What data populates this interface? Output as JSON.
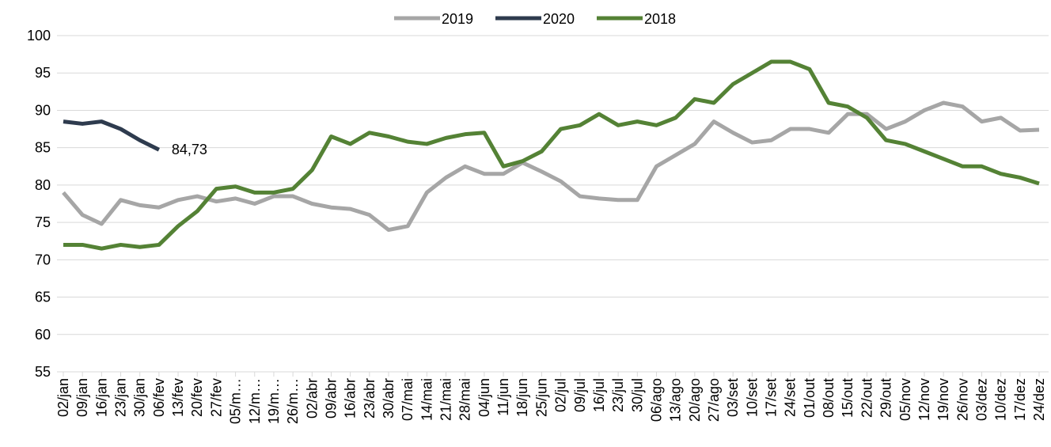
{
  "chart_data": {
    "type": "line",
    "categories": [
      "02/jan",
      "09/jan",
      "16/jan",
      "23/jan",
      "30/jan",
      "06/fev",
      "13/fev",
      "20/fev",
      "27/fev",
      "05/m…",
      "12/m…",
      "19/m…",
      "26/m…",
      "02/abr",
      "09/abr",
      "16/abr",
      "23/abr",
      "30/abr",
      "07/mai",
      "14/mai",
      "21/mai",
      "28/mai",
      "04/jun",
      "11/jun",
      "18/jun",
      "25/jun",
      "02/jul",
      "09/jul",
      "16/jul",
      "23/jul",
      "30/jul",
      "06/ago",
      "13/ago",
      "20/ago",
      "27/ago",
      "03/set",
      "10/set",
      "17/set",
      "24/set",
      "01/out",
      "08/out",
      "15/out",
      "22/out",
      "29/out",
      "05/nov",
      "12/nov",
      "19/nov",
      "26/nov",
      "03/dez",
      "10/dez",
      "17/dez",
      "24/dez"
    ],
    "series": [
      {
        "name": "2019",
        "color": "#a6a6a6",
        "values": [
          79,
          76,
          74.8,
          78,
          77.3,
          77,
          78,
          78.5,
          77.8,
          78.2,
          77.5,
          78.5,
          78.5,
          77.5,
          77,
          76.8,
          76,
          74,
          74.5,
          79,
          81,
          82.5,
          81.5,
          81.5,
          83,
          81.8,
          80.5,
          78.5,
          78.2,
          78,
          78,
          82.5,
          84,
          85.5,
          88.5,
          87,
          85.7,
          86,
          87.5,
          87.5,
          87,
          89.5,
          89.5,
          87.5,
          88.5,
          90,
          91,
          90.5,
          88.5,
          89,
          87.3,
          87.4
        ]
      },
      {
        "name": "2020",
        "color": "#2e3b4e",
        "values": [
          88.5,
          88.2,
          88.5,
          87.5,
          86,
          84.73,
          null,
          null,
          null,
          null,
          null,
          null,
          null,
          null,
          null,
          null,
          null,
          null,
          null,
          null,
          null,
          null,
          null,
          null,
          null,
          null,
          null,
          null,
          null,
          null,
          null,
          null,
          null,
          null,
          null,
          null,
          null,
          null,
          null,
          null,
          null,
          null,
          null,
          null,
          null,
          null,
          null,
          null,
          null,
          null,
          null,
          null
        ],
        "value_labels": [
          null,
          null,
          null,
          null,
          null,
          "84,73",
          null,
          null,
          null,
          null,
          null,
          null,
          null,
          null,
          null,
          null,
          null,
          null,
          null,
          null,
          null,
          null,
          null,
          null,
          null,
          null,
          null,
          null,
          null,
          null,
          null,
          null,
          null,
          null,
          null,
          null,
          null,
          null,
          null,
          null,
          null,
          null,
          null,
          null,
          null,
          null,
          null,
          null,
          null,
          null,
          null,
          null
        ]
      },
      {
        "name": "2018",
        "color": "#548235",
        "values": [
          72,
          72,
          71.5,
          72,
          71.7,
          72,
          74.5,
          76.5,
          79.5,
          79.8,
          79,
          79,
          79.5,
          82,
          86.5,
          85.5,
          87,
          86.5,
          85.8,
          85.5,
          86.3,
          86.8,
          87,
          82.5,
          83.2,
          84.5,
          87.5,
          88,
          89.5,
          88,
          88.5,
          88,
          89,
          91.5,
          91,
          93.5,
          95,
          96.5,
          96.5,
          95.5,
          91,
          90.5,
          89,
          86,
          85.5,
          84.5,
          83.5,
          82.5,
          82.5,
          81.5,
          81,
          80.2
        ]
      }
    ],
    "ylim": [
      55,
      100
    ],
    "yticks": [
      55,
      60,
      65,
      70,
      75,
      80,
      85,
      90,
      95,
      100
    ],
    "grid": true,
    "legend": "top"
  }
}
